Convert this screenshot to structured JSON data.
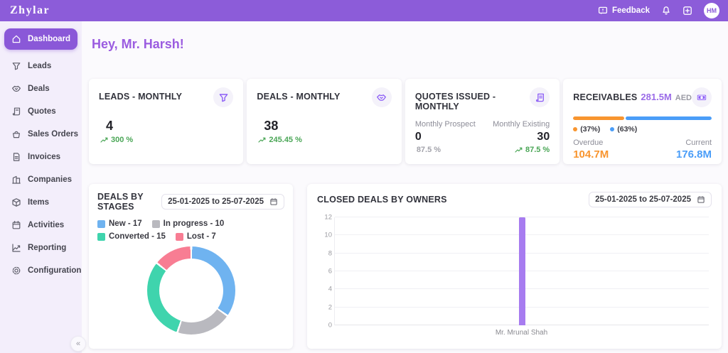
{
  "topbar": {
    "logo": "Zhylar",
    "feedback_label": "Feedback",
    "avatar_initials": "HM"
  },
  "sidebar": {
    "items": [
      {
        "label": "Dashboard",
        "icon": "home",
        "active": true
      },
      {
        "label": "Leads",
        "icon": "funnel",
        "active": false
      },
      {
        "label": "Deals",
        "icon": "handshake",
        "active": false
      },
      {
        "label": "Quotes",
        "icon": "scroll",
        "active": false
      },
      {
        "label": "Sales Orders",
        "icon": "basket",
        "active": false
      },
      {
        "label": "Invoices",
        "icon": "file",
        "active": false
      },
      {
        "label": "Companies",
        "icon": "building",
        "active": false
      },
      {
        "label": "Items",
        "icon": "box",
        "active": false
      },
      {
        "label": "Activities",
        "icon": "calendar",
        "active": false
      },
      {
        "label": "Reporting",
        "icon": "chart",
        "active": false
      },
      {
        "label": "Configuration",
        "icon": "gear",
        "active": false
      }
    ],
    "collapse_glyph": "«"
  },
  "main": {
    "greeting": "Hey, Mr. Harsh!"
  },
  "stats": {
    "leads": {
      "title": "LEADS - MONTHLY",
      "value": "4",
      "trend": "300 %"
    },
    "deals": {
      "title": "DEALS - MONTHLY",
      "value": "38",
      "trend": "245.45 %"
    },
    "quotes": {
      "title": "QUOTES ISSUED - MONTHLY",
      "prospect_label": "Monthly Prospect",
      "prospect_value": "0",
      "prospect_trend": "87.5 %",
      "existing_label": "Monthly Existing",
      "existing_value": "30",
      "existing_trend": "87.5 %"
    },
    "receivables": {
      "title": "RECEIVABLES",
      "total": "281.5M",
      "currency": "AED",
      "overdue_pct": "(37%)",
      "current_pct": "(63%)",
      "overdue_label": "Overdue",
      "current_label": "Current",
      "overdue_value": "104.7M",
      "current_value": "176.8M",
      "overdue_ratio": 37,
      "current_ratio": 63,
      "overdue_color": "#f8952f",
      "current_color": "#4a9df8"
    }
  },
  "charts": {
    "stages": {
      "title": "DEALS BY STAGES",
      "date_range": "25-01-2025 to 25-07-2025"
    },
    "owners": {
      "title": "CLOSED DEALS BY OWNERS",
      "date_range": "25-01-2025 to 25-07-2025"
    }
  },
  "chart_data": [
    {
      "type": "donut",
      "title": "DEALS BY STAGES",
      "categories": [
        "New",
        "In progress",
        "Converted",
        "Lost"
      ],
      "values": [
        17,
        10,
        15,
        7
      ],
      "colors": [
        "#6fb3f0",
        "#b9b9bf",
        "#3fd4ad",
        "#f87d93"
      ],
      "legend": [
        "New - 17",
        "In progress - 10",
        "Converted - 15",
        "Lost - 7"
      ],
      "date_range": "25-01-2025 to 25-07-2025",
      "legend_position": "top"
    },
    {
      "type": "bar",
      "title": "CLOSED DEALS BY OWNERS",
      "categories": [
        "Mr. Mrunal Shah"
      ],
      "values": [
        12
      ],
      "ylim": [
        0,
        12
      ],
      "yticks": [
        0,
        2,
        4,
        6,
        8,
        10,
        12
      ],
      "bar_color": "#a77cf0",
      "grid": true,
      "date_range": "25-01-2025 to 25-07-2025"
    }
  ]
}
